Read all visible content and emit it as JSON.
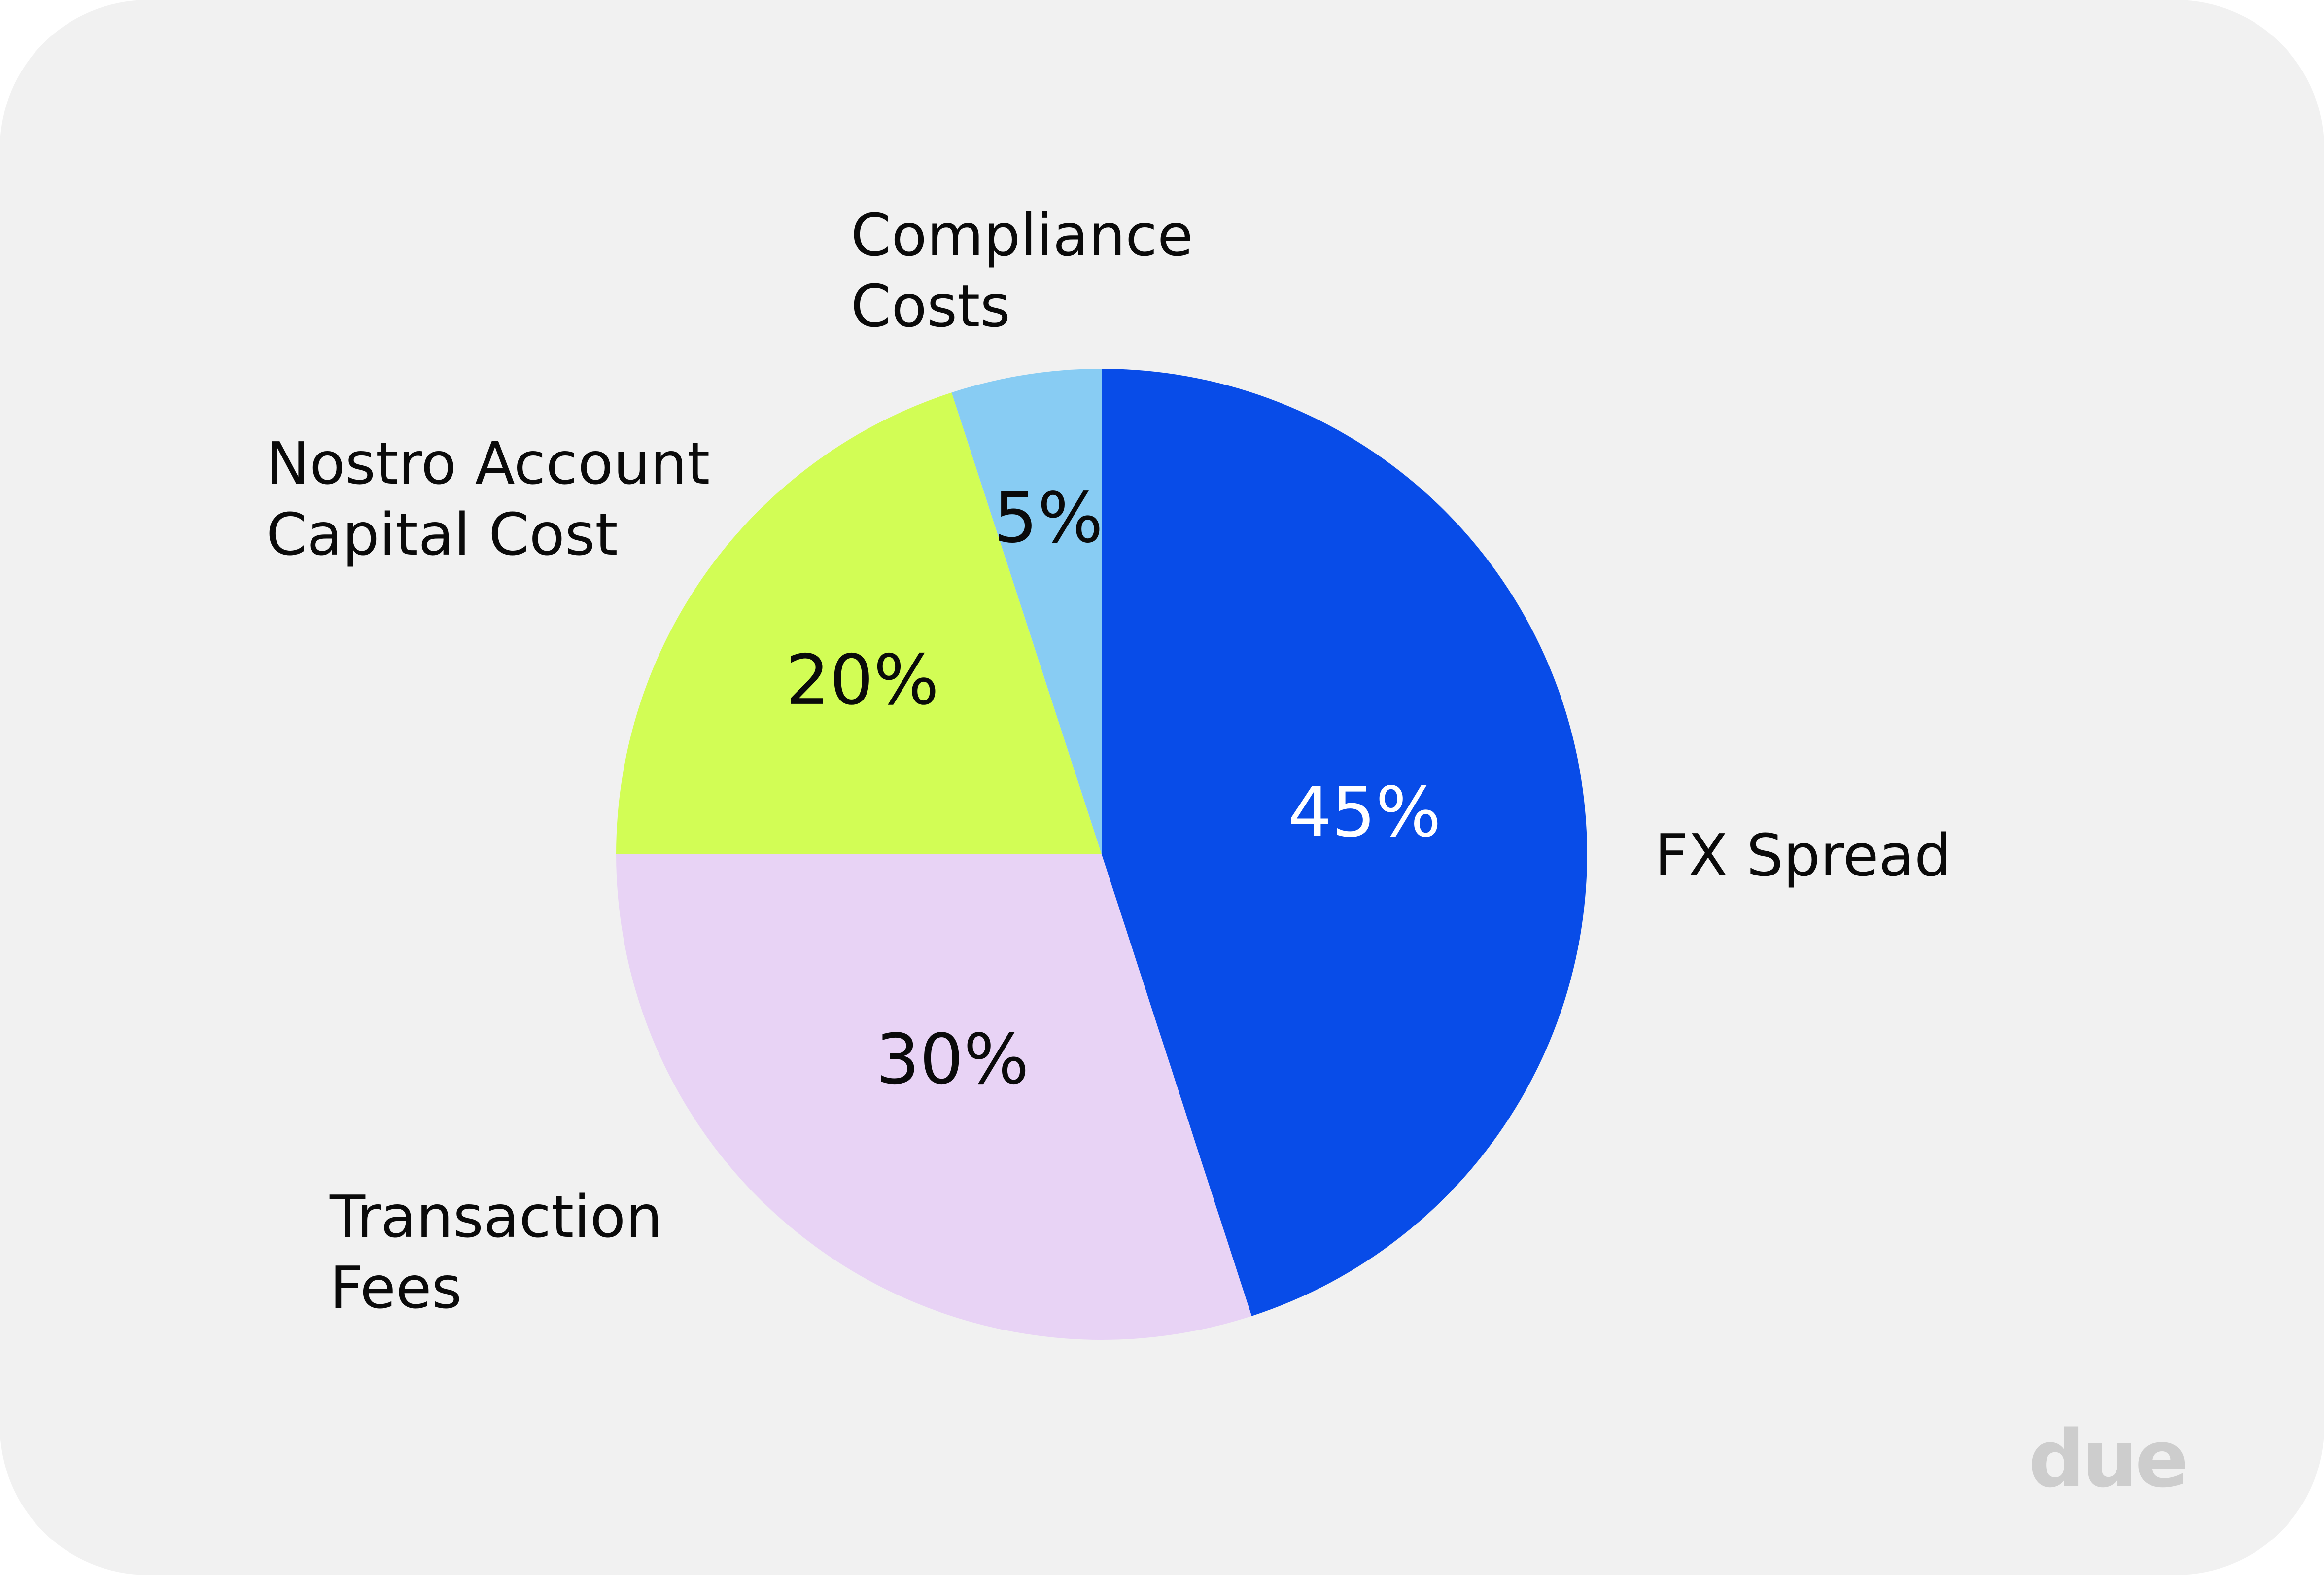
{
  "chart_data": {
    "type": "pie",
    "start_angle_deg": 0,
    "direction": "clockwise",
    "slices": [
      {
        "label_lines": [
          "FX Spread"
        ],
        "value": 45,
        "value_label": "45%",
        "color": "#084ce8",
        "value_color": "#ffffff"
      },
      {
        "label_lines": [
          "Transaction",
          "Fees"
        ],
        "value": 30,
        "value_label": "30%",
        "color": "#e8d3f5",
        "value_color": "#0a0a0a"
      },
      {
        "label_lines": [
          "Nostro Account",
          "Capital Cost"
        ],
        "value": 20,
        "value_label": "20%",
        "color": "#d2fd55",
        "value_color": "#0a0a0a"
      },
      {
        "label_lines": [
          "Compliance",
          "Costs"
        ],
        "value": 5,
        "value_label": "5%",
        "color": "#88ccf3",
        "value_color": "#0a0a0a"
      }
    ]
  },
  "brand": {
    "logo_text": "due",
    "logo_color": "#cdcdcd",
    "background_color": "#f1f1f1"
  }
}
